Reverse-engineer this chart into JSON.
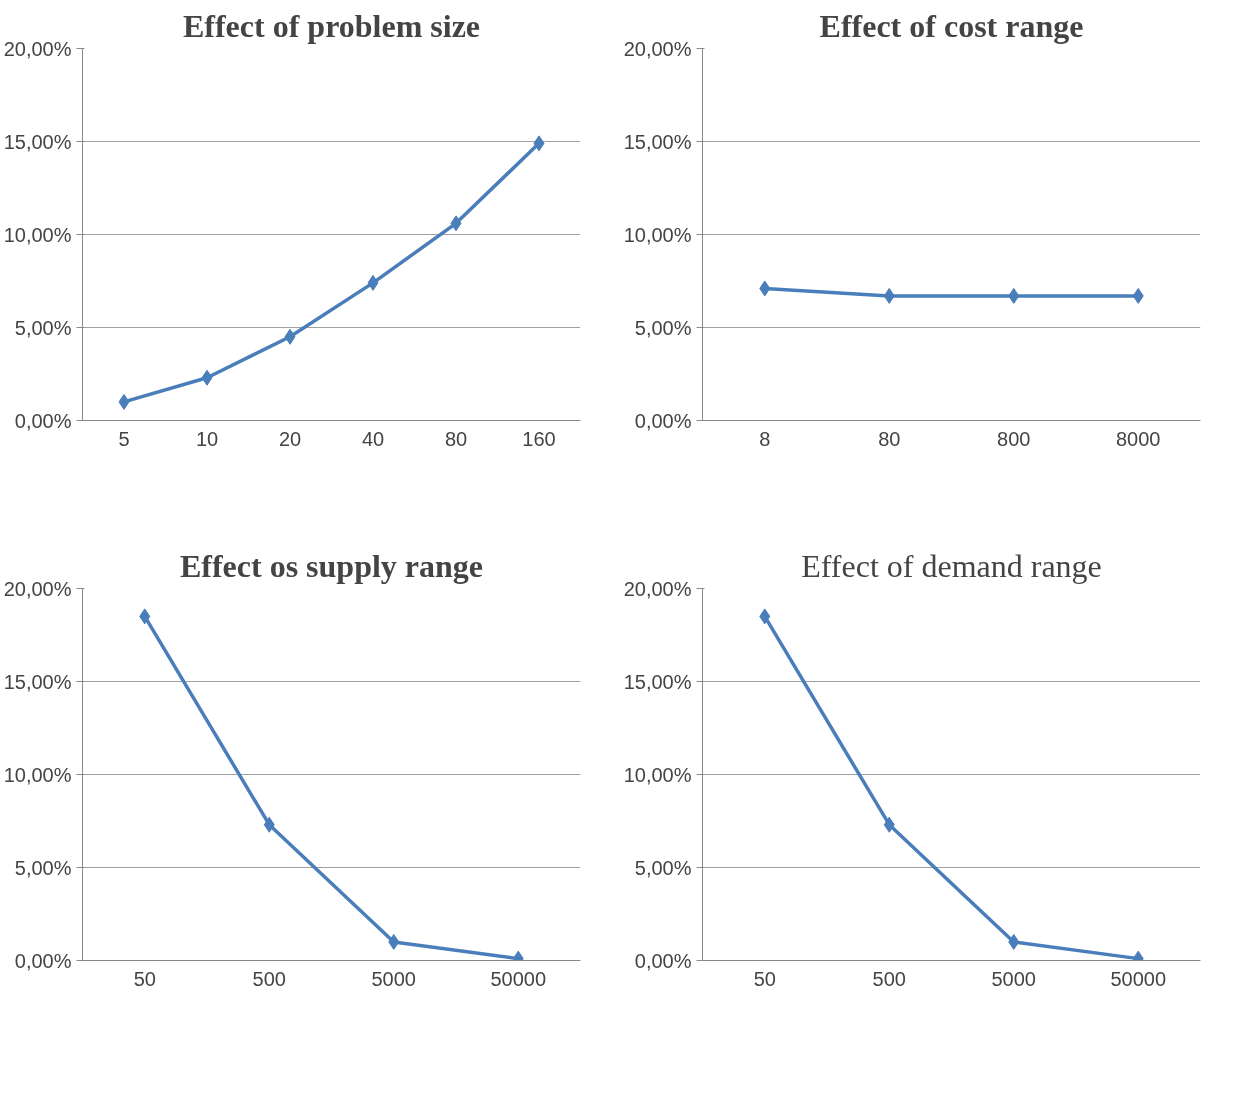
{
  "chart_data": [
    {
      "type": "line",
      "title": "Effect of problem size",
      "categories": [
        "5",
        "10",
        "20",
        "40",
        "80",
        "160"
      ],
      "series": [
        {
          "color": "#4a7ebb",
          "values": [
            1.0,
            2.3,
            4.5,
            7.4,
            10.6,
            14.9
          ]
        }
      ],
      "ylim": [
        0,
        20
      ],
      "yticks": [
        {
          "value": 0,
          "label": "0,00%"
        },
        {
          "value": 5,
          "label": "5,00%"
        },
        {
          "value": 10,
          "label": "10,00%"
        },
        {
          "value": 15,
          "label": "15,00%"
        },
        {
          "value": 20,
          "label": "20,00%"
        }
      ],
      "grid": "y",
      "marker": "diamond",
      "line_style": "solid"
    },
    {
      "type": "line",
      "title": "Effect of cost range",
      "categories": [
        "8",
        "80",
        "800",
        "8000"
      ],
      "series": [
        {
          "color": "#4a7ebb",
          "values": [
            7.1,
            6.7,
            6.7,
            6.7
          ]
        }
      ],
      "ylim": [
        0,
        20
      ],
      "yticks": [
        {
          "value": 0,
          "label": "0,00%"
        },
        {
          "value": 5,
          "label": "5,00%"
        },
        {
          "value": 10,
          "label": "10,00%"
        },
        {
          "value": 15,
          "label": "15,00%"
        },
        {
          "value": 20,
          "label": "20,00%"
        }
      ],
      "grid": "y",
      "marker": "diamond",
      "line_style": "solid"
    },
    {
      "type": "line",
      "title": "Effect os supply range",
      "categories": [
        "50",
        "500",
        "5000",
        "50000"
      ],
      "series": [
        {
          "color": "#4a7ebb",
          "values": [
            18.5,
            7.3,
            1.0,
            0.1
          ]
        }
      ],
      "ylim": [
        0,
        20
      ],
      "yticks": [
        {
          "value": 0,
          "label": "0,00%"
        },
        {
          "value": 5,
          "label": "5,00%"
        },
        {
          "value": 10,
          "label": "10,00%"
        },
        {
          "value": 15,
          "label": "15,00%"
        },
        {
          "value": 20,
          "label": "20,00%"
        }
      ],
      "grid": "y",
      "marker": "diamond",
      "line_style": "solid"
    },
    {
      "type": "line",
      "title": "Effect of demand range",
      "categories": [
        "50",
        "500",
        "5000",
        "50000"
      ],
      "series": [
        {
          "color": "#4a7ebb",
          "values": [
            18.5,
            7.3,
            1.0,
            0.1
          ]
        }
      ],
      "ylim": [
        0,
        20
      ],
      "yticks": [
        {
          "value": 0,
          "label": "0,00%"
        },
        {
          "value": 5,
          "label": "5,00%"
        },
        {
          "value": 10,
          "label": "10,00%"
        },
        {
          "value": 15,
          "label": "15,00%"
        },
        {
          "value": 20,
          "label": "20,00%"
        }
      ],
      "grid": "y",
      "marker": "diamond",
      "line_style": "solid"
    }
  ]
}
